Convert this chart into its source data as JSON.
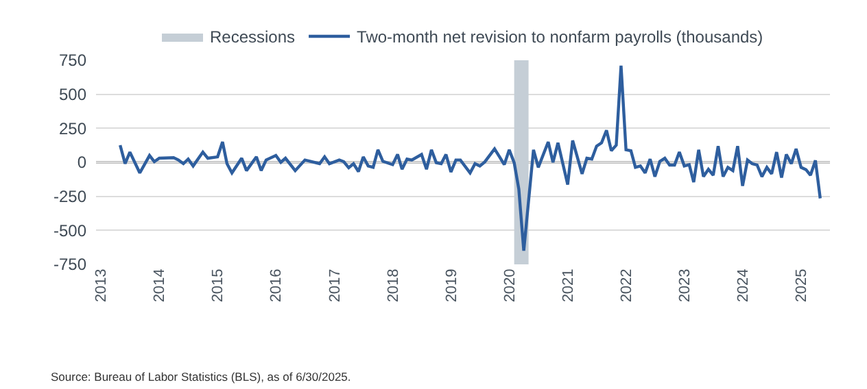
{
  "chart_data": {
    "type": "line",
    "x": [
      "2013-05",
      "2013-06",
      "2013-07",
      "2013-09",
      "2013-11",
      "2013-12",
      "2014-01",
      "2014-04",
      "2014-05",
      "2014-06",
      "2014-07",
      "2014-08",
      "2014-10",
      "2014-11",
      "2015-01",
      "2015-02",
      "2015-03",
      "2015-04",
      "2015-06",
      "2015-07",
      "2015-09",
      "2015-10",
      "2015-11",
      "2016-01",
      "2016-02",
      "2016-03",
      "2016-05",
      "2016-07",
      "2016-10",
      "2016-11",
      "2016-12",
      "2017-02",
      "2017-03",
      "2017-04",
      "2017-05",
      "2017-06",
      "2017-07",
      "2017-08",
      "2017-09",
      "2017-10",
      "2017-11",
      "2018-01",
      "2018-02",
      "2018-03",
      "2018-04",
      "2018-05",
      "2018-07",
      "2018-08",
      "2018-09",
      "2018-10",
      "2018-11",
      "2018-12",
      "2019-01",
      "2019-02",
      "2019-03",
      "2019-05",
      "2019-06",
      "2019-07",
      "2019-08",
      "2019-10",
      "2019-11",
      "2019-12",
      "2020-01",
      "2020-02",
      "2020-03",
      "2020-04",
      "2020-06",
      "2020-07",
      "2020-09",
      "2020-10",
      "2020-11",
      "2021-01",
      "2021-02",
      "2021-04",
      "2021-05",
      "2021-06",
      "2021-07",
      "2021-08",
      "2021-09",
      "2021-10",
      "2021-11",
      "2021-12",
      "2022-01",
      "2022-02",
      "2022-03",
      "2022-04",
      "2022-05",
      "2022-06",
      "2022-07",
      "2022-08",
      "2022-09",
      "2022-10",
      "2022-11",
      "2022-12",
      "2023-01",
      "2023-02",
      "2023-03",
      "2023-04",
      "2023-05",
      "2023-06",
      "2023-07",
      "2023-08",
      "2023-09",
      "2023-10",
      "2023-11",
      "2023-12",
      "2024-01",
      "2024-02",
      "2024-03",
      "2024-04",
      "2024-05",
      "2024-06",
      "2024-07",
      "2024-08",
      "2024-09",
      "2024-10",
      "2024-11",
      "2024-12",
      "2025-01",
      "2025-02",
      "2025-03",
      "2025-04",
      "2025-05"
    ],
    "series": [
      {
        "name": "Two-month net revision to nonfarm payrolls (thousands)",
        "color": "#2e5e9e",
        "values": [
          126,
          -10,
          75,
          -78,
          50,
          5,
          30,
          34,
          17,
          -10,
          24,
          -27,
          75,
          30,
          40,
          150,
          -10,
          -78,
          30,
          -61,
          40,
          -61,
          17,
          50,
          0,
          30,
          -61,
          17,
          -10,
          40,
          -10,
          17,
          5,
          -40,
          -10,
          -68,
          40,
          -27,
          -37,
          92,
          7,
          -17,
          58,
          -51,
          24,
          17,
          58,
          -51,
          92,
          -3,
          -10,
          58,
          -71,
          17,
          17,
          -78,
          -10,
          -27,
          3,
          99,
          41,
          -17,
          92,
          -3,
          -197,
          -650,
          92,
          -37,
          150,
          0,
          143,
          -163,
          160,
          -85,
          30,
          24,
          119,
          143,
          235,
          85,
          126,
          710,
          92,
          85,
          -37,
          -27,
          -78,
          24,
          -105,
          7,
          30,
          -20,
          -20,
          75,
          -27,
          -17,
          -146,
          92,
          -105,
          -51,
          -95,
          119,
          -105,
          -37,
          -61,
          119,
          -173,
          17,
          -10,
          -20,
          -105,
          -37,
          -85,
          75,
          -112,
          58,
          -10,
          99,
          -37,
          -54,
          -95,
          14,
          -265
        ]
      }
    ],
    "xlim": [
      "2012-12",
      "2025-07"
    ],
    "xticks": [
      "2013",
      "2014",
      "2015",
      "2016",
      "2017",
      "2018",
      "2019",
      "2020",
      "2021",
      "2022",
      "2023",
      "2024",
      "2025"
    ],
    "ylim": [
      -750,
      750
    ],
    "yticks": [
      -750,
      -500,
      -250,
      0,
      250,
      500,
      750
    ],
    "bands": [
      {
        "axis": "x",
        "from": "2020-02",
        "to": "2020-05",
        "label": "Recessions",
        "color": "#c5ced6"
      }
    ],
    "ref_lines": [
      {
        "axis": "y",
        "value": 0,
        "color": "#808080"
      }
    ],
    "grid": "y",
    "legend": "top",
    "annotations": [
      "Source: Bureau of Labor Statistics (BLS), as of 6/30/2025."
    ]
  }
}
